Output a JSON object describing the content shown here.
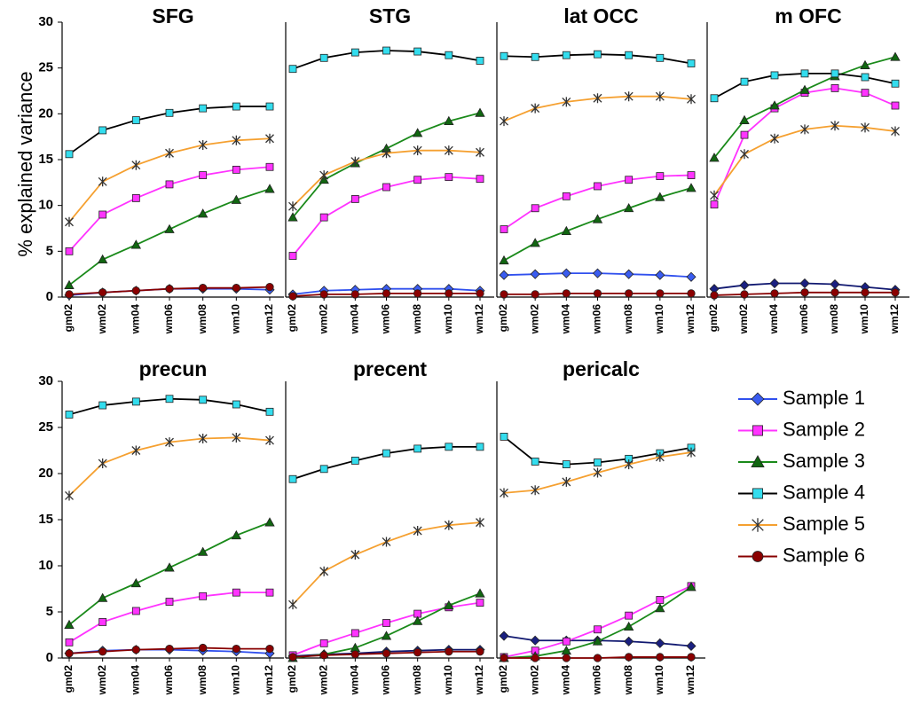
{
  "chart_data": [
    {
      "type": "line",
      "title": "SFG",
      "ylabel": "% explained variance",
      "categories": [
        "gm02",
        "wm02",
        "wm04",
        "wm06",
        "wm08",
        "wm10",
        "wm12"
      ],
      "ylim": [
        0,
        30
      ],
      "yticks": [
        0,
        5,
        10,
        15,
        20,
        25,
        30
      ],
      "series": [
        {
          "name": "Sample 1",
          "color": "#3050ee",
          "marker": "diamond",
          "marker_color": "#3a5cf0",
          "values": [
            0.2,
            0.5,
            0.7,
            0.9,
            0.9,
            0.9,
            0.8
          ]
        },
        {
          "name": "Sample 2",
          "color": "#ff33ff",
          "marker": "square",
          "marker_color": "#ff33ff",
          "values": [
            5,
            9,
            10.8,
            12.3,
            13.3,
            13.9,
            14.2
          ]
        },
        {
          "name": "Sample 3",
          "color": "#1a8a1a",
          "marker": "triangle",
          "marker_color": "#116611",
          "values": [
            1.3,
            4.1,
            5.7,
            7.4,
            9.1,
            10.6,
            11.8
          ]
        },
        {
          "name": "Sample 4",
          "color": "#000000",
          "marker": "square",
          "marker_color": "#33ddee",
          "values": [
            15.6,
            18.2,
            19.3,
            20.1,
            20.6,
            20.8,
            20.8
          ]
        },
        {
          "name": "Sample 5",
          "color": "#f5a030",
          "marker": "asterisk",
          "marker_color": "#333333",
          "values": [
            8.2,
            12.6,
            14.4,
            15.7,
            16.6,
            17.1,
            17.3
          ]
        },
        {
          "name": "Sample 6",
          "color": "#880000",
          "marker": "circle",
          "marker_color": "#8b0000",
          "values": [
            0.3,
            0.5,
            0.7,
            0.9,
            1.0,
            1.0,
            1.1
          ]
        }
      ]
    },
    {
      "type": "line",
      "title": "STG",
      "categories": [
        "gm02",
        "wm02",
        "wm04",
        "wm06",
        "wm08",
        "wm10",
        "wm12"
      ],
      "ylim": [
        0,
        30
      ],
      "series": [
        {
          "color": "#3050ee",
          "marker": "diamond",
          "marker_color": "#3a5cf0",
          "values": [
            0.3,
            0.7,
            0.8,
            0.9,
            0.9,
            0.9,
            0.7
          ]
        },
        {
          "color": "#ff33ff",
          "marker": "square",
          "marker_color": "#ff33ff",
          "values": [
            4.5,
            8.7,
            10.7,
            12.0,
            12.8,
            13.1,
            12.9
          ]
        },
        {
          "color": "#1a8a1a",
          "marker": "triangle",
          "marker_color": "#116611",
          "values": [
            8.7,
            12.8,
            14.6,
            16.2,
            17.9,
            19.2,
            20.1
          ]
        },
        {
          "color": "#000000",
          "marker": "square",
          "marker_color": "#33ddee",
          "values": [
            24.9,
            26.1,
            26.7,
            26.9,
            26.8,
            26.4,
            25.8
          ]
        },
        {
          "color": "#f5a030",
          "marker": "asterisk",
          "marker_color": "#333333",
          "values": [
            9.9,
            13.3,
            14.8,
            15.7,
            16.0,
            16.0,
            15.8
          ]
        },
        {
          "color": "#880000",
          "marker": "circle",
          "marker_color": "#8b0000",
          "values": [
            0.1,
            0.3,
            0.3,
            0.4,
            0.4,
            0.4,
            0.4
          ]
        }
      ]
    },
    {
      "type": "line",
      "title": "lat OCC",
      "categories": [
        "gm02",
        "wm02",
        "wm04",
        "wm06",
        "wm08",
        "wm10",
        "wm12"
      ],
      "ylim": [
        0,
        30
      ],
      "series": [
        {
          "color": "#3050ee",
          "marker": "diamond",
          "marker_color": "#3a5cf0",
          "values": [
            2.4,
            2.5,
            2.6,
            2.6,
            2.5,
            2.4,
            2.2
          ]
        },
        {
          "color": "#ff33ff",
          "marker": "square",
          "marker_color": "#ff33ff",
          "values": [
            7.4,
            9.7,
            11.0,
            12.1,
            12.8,
            13.2,
            13.3
          ]
        },
        {
          "color": "#1a8a1a",
          "marker": "triangle",
          "marker_color": "#116611",
          "values": [
            4.0,
            5.9,
            7.2,
            8.5,
            9.7,
            10.9,
            11.9
          ]
        },
        {
          "color": "#000000",
          "marker": "square",
          "marker_color": "#33ddee",
          "values": [
            26.3,
            26.2,
            26.4,
            26.5,
            26.4,
            26.1,
            25.5
          ]
        },
        {
          "color": "#f5a030",
          "marker": "asterisk",
          "marker_color": "#333333",
          "values": [
            19.2,
            20.6,
            21.3,
            21.7,
            21.9,
            21.9,
            21.6
          ]
        },
        {
          "color": "#880000",
          "marker": "circle",
          "marker_color": "#8b0000",
          "values": [
            0.3,
            0.3,
            0.4,
            0.4,
            0.4,
            0.4,
            0.4
          ]
        }
      ]
    },
    {
      "type": "line",
      "title": "m OFC",
      "categories": [
        "gm02",
        "wm02",
        "wm04",
        "wm06",
        "wm08",
        "wm10",
        "wm12"
      ],
      "ylim": [
        0,
        30
      ],
      "series": [
        {
          "color": "#101870",
          "marker": "diamond",
          "marker_color": "#1a2080",
          "values": [
            0.9,
            1.3,
            1.5,
            1.5,
            1.4,
            1.1,
            0.8
          ]
        },
        {
          "color": "#ff33ff",
          "marker": "square",
          "marker_color": "#ff33ff",
          "values": [
            10.1,
            17.7,
            20.6,
            22.3,
            22.8,
            22.3,
            20.9
          ]
        },
        {
          "color": "#1a8a1a",
          "marker": "triangle",
          "marker_color": "#116611",
          "values": [
            15.2,
            19.3,
            20.9,
            22.6,
            24.1,
            25.3,
            26.2
          ]
        },
        {
          "color": "#000000",
          "marker": "square",
          "marker_color": "#33ddee",
          "values": [
            21.7,
            23.5,
            24.2,
            24.4,
            24.4,
            24.0,
            23.3
          ]
        },
        {
          "color": "#f5a030",
          "marker": "asterisk",
          "marker_color": "#333333",
          "values": [
            11.1,
            15.6,
            17.3,
            18.3,
            18.7,
            18.5,
            18.1
          ]
        },
        {
          "color": "#880000",
          "marker": "circle",
          "marker_color": "#8b0000",
          "values": [
            0.2,
            0.3,
            0.4,
            0.5,
            0.5,
            0.5,
            0.5
          ]
        }
      ]
    },
    {
      "type": "line",
      "title": "precun",
      "categories": [
        "gm02",
        "wm02",
        "wm04",
        "wm06",
        "wm08",
        "wm10",
        "wm12"
      ],
      "ylim": [
        0,
        30
      ],
      "yticks": [
        0,
        5,
        10,
        15,
        20,
        25,
        30
      ],
      "series": [
        {
          "color": "#3050ee",
          "marker": "diamond",
          "marker_color": "#3a5cf0",
          "values": [
            0.5,
            0.8,
            0.9,
            0.9,
            0.8,
            0.7,
            0.5
          ]
        },
        {
          "color": "#ff33ff",
          "marker": "square",
          "marker_color": "#ff33ff",
          "values": [
            1.7,
            3.9,
            5.1,
            6.1,
            6.7,
            7.1,
            7.1
          ]
        },
        {
          "color": "#1a8a1a",
          "marker": "triangle",
          "marker_color": "#116611",
          "values": [
            3.6,
            6.5,
            8.1,
            9.8,
            11.5,
            13.3,
            14.7
          ]
        },
        {
          "color": "#000000",
          "marker": "square",
          "marker_color": "#33ddee",
          "values": [
            26.4,
            27.4,
            27.8,
            28.1,
            28.0,
            27.5,
            26.7
          ]
        },
        {
          "color": "#f5a030",
          "marker": "asterisk",
          "marker_color": "#333333",
          "values": [
            17.6,
            21.1,
            22.5,
            23.4,
            23.8,
            23.9,
            23.6
          ]
        },
        {
          "color": "#880000",
          "marker": "circle",
          "marker_color": "#8b0000",
          "values": [
            0.5,
            0.7,
            0.9,
            1.0,
            1.1,
            1.0,
            1.0
          ]
        }
      ]
    },
    {
      "type": "line",
      "title": "precent",
      "categories": [
        "gm02",
        "wm02",
        "wm04",
        "wm06",
        "wm08",
        "wm10",
        "wm12"
      ],
      "ylim": [
        0,
        30
      ],
      "series": [
        {
          "color": "#101870",
          "marker": "diamond",
          "marker_color": "#1a2080",
          "values": [
            0.2,
            0.4,
            0.5,
            0.7,
            0.8,
            0.9,
            0.9
          ]
        },
        {
          "color": "#ff33ff",
          "marker": "square",
          "marker_color": "#ff33ff",
          "values": [
            0.3,
            1.6,
            2.7,
            3.8,
            4.8,
            5.5,
            6.0
          ]
        },
        {
          "color": "#1a8a1a",
          "marker": "triangle",
          "marker_color": "#116611",
          "values": [
            0.0,
            0.4,
            1.1,
            2.4,
            4.0,
            5.7,
            7.0
          ]
        },
        {
          "color": "#000000",
          "marker": "square",
          "marker_color": "#33ddee",
          "values": [
            19.4,
            20.5,
            21.4,
            22.2,
            22.7,
            22.9,
            22.9
          ]
        },
        {
          "color": "#f5a030",
          "marker": "asterisk",
          "marker_color": "#333333",
          "values": [
            5.8,
            9.4,
            11.2,
            12.6,
            13.8,
            14.4,
            14.7
          ]
        },
        {
          "color": "#880000",
          "marker": "circle",
          "marker_color": "#8b0000",
          "values": [
            0.1,
            0.3,
            0.4,
            0.5,
            0.6,
            0.7,
            0.7
          ]
        }
      ]
    },
    {
      "type": "line",
      "title": "pericalc",
      "categories": [
        "gm02",
        "wm02",
        "wm04",
        "wm06",
        "wm08",
        "wm10",
        "wm12"
      ],
      "ylim": [
        0,
        30
      ],
      "series": [
        {
          "color": "#101870",
          "marker": "diamond",
          "marker_color": "#1a2080",
          "values": [
            2.4,
            1.9,
            1.9,
            1.9,
            1.8,
            1.6,
            1.3
          ]
        },
        {
          "color": "#ff33ff",
          "marker": "square",
          "marker_color": "#ff33ff",
          "values": [
            0.1,
            0.8,
            1.8,
            3.1,
            4.6,
            6.3,
            7.8
          ]
        },
        {
          "color": "#1a8a1a",
          "marker": "triangle",
          "marker_color": "#116611",
          "values": [
            0.0,
            0.2,
            0.8,
            1.8,
            3.4,
            5.4,
            7.7
          ]
        },
        {
          "color": "#000000",
          "marker": "square",
          "marker_color": "#33ddee",
          "values": [
            24.0,
            21.3,
            21.0,
            21.2,
            21.6,
            22.2,
            22.8
          ]
        },
        {
          "color": "#f5a030",
          "marker": "asterisk",
          "marker_color": "#333333",
          "values": [
            17.9,
            18.2,
            19.1,
            20.1,
            21.0,
            21.8,
            22.3
          ]
        },
        {
          "color": "#880000",
          "marker": "circle",
          "marker_color": "#8b0000",
          "values": [
            0.0,
            0.0,
            0.0,
            0.0,
            0.1,
            0.1,
            0.1
          ]
        }
      ]
    }
  ]
}
